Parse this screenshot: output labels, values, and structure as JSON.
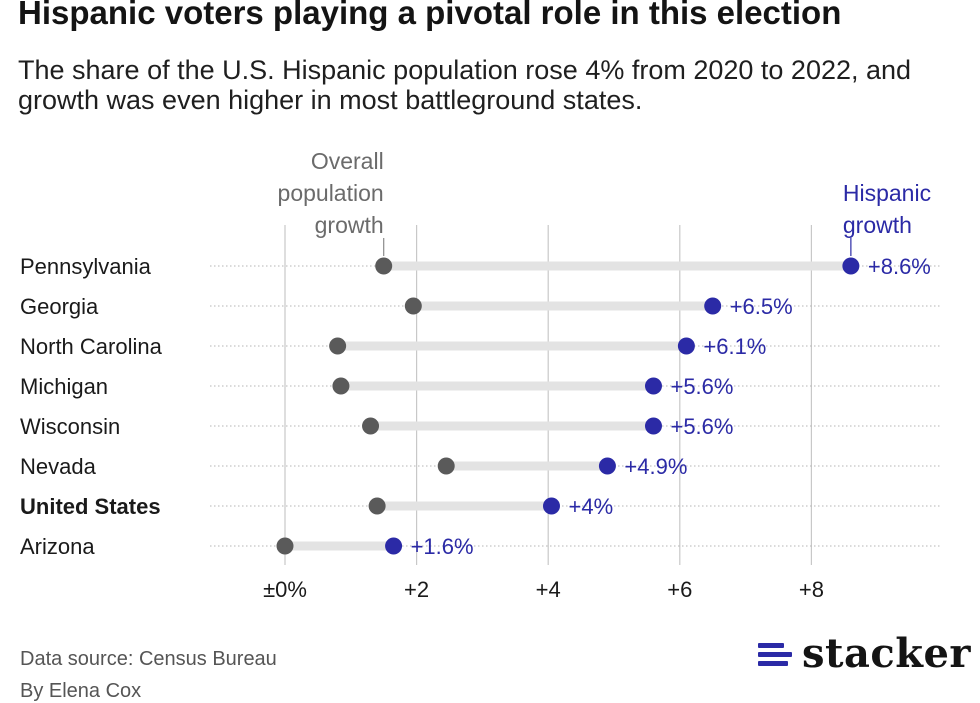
{
  "header": {
    "title": "Hispanic voters playing a pivotal role in this election",
    "subtitle": "The share of the U.S. Hispanic population rose 4% from 2020 to 2022, and growth was even higher in most battleground states."
  },
  "chart_data": {
    "type": "dot-range",
    "xlim": [
      0,
      9.6
    ],
    "ticks": [
      {
        "value": 0,
        "label": "±0%"
      },
      {
        "value": 2,
        "label": "+2"
      },
      {
        "value": 4,
        "label": "+4"
      },
      {
        "value": 6,
        "label": "+6"
      },
      {
        "value": 8,
        "label": "+8"
      }
    ],
    "series_labels": {
      "overall": [
        "Overall",
        "population",
        "growth"
      ],
      "hispanic": [
        "Hispanic",
        "growth"
      ]
    },
    "rows": [
      {
        "state": "Pennsylvania",
        "overall": 1.5,
        "hispanic": 8.6,
        "label": "+8.6%",
        "bold": false
      },
      {
        "state": "Georgia",
        "overall": 1.95,
        "hispanic": 6.5,
        "label": "+6.5%",
        "bold": false
      },
      {
        "state": "North Carolina",
        "overall": 0.8,
        "hispanic": 6.1,
        "label": "+6.1%",
        "bold": false
      },
      {
        "state": "Michigan",
        "overall": 0.85,
        "hispanic": 5.6,
        "label": "+5.6%",
        "bold": false
      },
      {
        "state": "Wisconsin",
        "overall": 1.3,
        "hispanic": 5.6,
        "label": "+5.6%",
        "bold": false
      },
      {
        "state": "Nevada",
        "overall": 2.45,
        "hispanic": 4.9,
        "label": "+4.9%",
        "bold": false
      },
      {
        "state": "United States",
        "overall": 1.4,
        "hispanic": 4.05,
        "label": "+4%",
        "bold": true
      },
      {
        "state": "Arizona",
        "overall": 0,
        "hispanic": 1.65,
        "label": "+1.6%",
        "bold": false
      }
    ],
    "colors": {
      "overall": "#5a5a5a",
      "hispanic": "#2b2aa6",
      "range_bar": "#e3e3e3",
      "grid": "#c8c8c8",
      "overall_label": "#6b6b6b"
    }
  },
  "footer": {
    "source": "Data source: Census Bureau",
    "author": "By Elena Cox",
    "logo_text": "stacker",
    "logo_icon": "stacker-bars-icon"
  }
}
